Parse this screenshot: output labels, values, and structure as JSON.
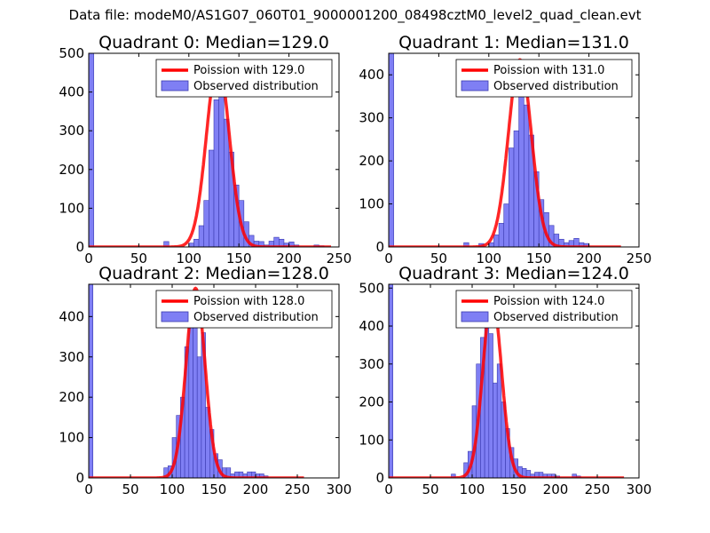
{
  "suptitle": "Data file: modeM0/AS1G07_060T01_9000001200_08498cztM0_level2_quad_clean.evt",
  "colors": {
    "hist_fill": "#7f7ff4",
    "hist_edge": "#3a3ab0",
    "fit_line": "#ff0000"
  },
  "chart_data": [
    {
      "type": "bar",
      "title": "Quadrant 0: Median=129.0",
      "xlim": [
        0,
        250
      ],
      "ylim": [
        0,
        500
      ],
      "xticks": [
        0,
        50,
        100,
        150,
        200,
        250
      ],
      "yticks": [
        0,
        100,
        200,
        300,
        400,
        500
      ],
      "bin_width": 5,
      "bins": [
        [
          0,
          500
        ],
        [
          75,
          14
        ],
        [
          100,
          10
        ],
        [
          105,
          20
        ],
        [
          110,
          55
        ],
        [
          115,
          120
        ],
        [
          120,
          250
        ],
        [
          125,
          380
        ],
        [
          130,
          430
        ],
        [
          135,
          330
        ],
        [
          140,
          245
        ],
        [
          145,
          160
        ],
        [
          150,
          120
        ],
        [
          155,
          65
        ],
        [
          160,
          30
        ],
        [
          165,
          15
        ],
        [
          170,
          14
        ],
        [
          175,
          5
        ],
        [
          180,
          15
        ],
        [
          185,
          25
        ],
        [
          190,
          20
        ],
        [
          195,
          10
        ],
        [
          200,
          13
        ],
        [
          205,
          5
        ],
        [
          225,
          5
        ],
        [
          230,
          3
        ]
      ],
      "fit": {
        "type": "poisson",
        "mean": 129.0,
        "peak": 480,
        "x_start": 0,
        "x_end": 242
      },
      "legend": {
        "line": "Poission with 129.0",
        "bar": "Observed distribution",
        "position": "upper-right"
      }
    },
    {
      "type": "bar",
      "title": "Quadrant 1: Median=131.0",
      "xlim": [
        0,
        250
      ],
      "ylim": [
        0,
        450
      ],
      "xticks": [
        0,
        50,
        100,
        150,
        200,
        250
      ],
      "yticks": [
        0,
        100,
        200,
        300,
        400
      ],
      "bin_width": 5,
      "bins": [
        [
          0,
          450
        ],
        [
          75,
          10
        ],
        [
          90,
          8
        ],
        [
          100,
          10
        ],
        [
          105,
          28
        ],
        [
          110,
          55
        ],
        [
          115,
          100
        ],
        [
          120,
          230
        ],
        [
          125,
          270
        ],
        [
          130,
          410
        ],
        [
          135,
          330
        ],
        [
          140,
          260
        ],
        [
          145,
          175
        ],
        [
          150,
          110
        ],
        [
          155,
          80
        ],
        [
          160,
          50
        ],
        [
          165,
          30
        ],
        [
          170,
          18
        ],
        [
          175,
          10
        ],
        [
          180,
          15
        ],
        [
          185,
          20
        ],
        [
          190,
          10
        ],
        [
          195,
          8
        ]
      ],
      "fit": {
        "type": "poisson",
        "mean": 131.0,
        "peak": 435,
        "x_start": 0,
        "x_end": 232
      },
      "legend": {
        "line": "Poission with 131.0",
        "bar": "Observed distribution",
        "position": "upper-right"
      }
    },
    {
      "type": "bar",
      "title": "Quadrant 2: Median=128.0",
      "xlim": [
        0,
        300
      ],
      "ylim": [
        0,
        480
      ],
      "xticks": [
        0,
        50,
        100,
        150,
        200,
        250,
        300
      ],
      "yticks": [
        0,
        100,
        200,
        300,
        400
      ],
      "bin_width": 5,
      "bins": [
        [
          0,
          480
        ],
        [
          90,
          25
        ],
        [
          95,
          30
        ],
        [
          100,
          100
        ],
        [
          105,
          155
        ],
        [
          110,
          200
        ],
        [
          115,
          325
        ],
        [
          120,
          440
        ],
        [
          125,
          400
        ],
        [
          130,
          300
        ],
        [
          135,
          360
        ],
        [
          140,
          175
        ],
        [
          145,
          120
        ],
        [
          150,
          60
        ],
        [
          155,
          45
        ],
        [
          160,
          25
        ],
        [
          165,
          25
        ],
        [
          170,
          10
        ],
        [
          175,
          15
        ],
        [
          180,
          15
        ],
        [
          185,
          10
        ],
        [
          190,
          15
        ],
        [
          195,
          15
        ],
        [
          200,
          10
        ],
        [
          205,
          10
        ],
        [
          210,
          5
        ]
      ],
      "fit": {
        "type": "poisson",
        "mean": 128.0,
        "peak": 470,
        "x_start": 0,
        "x_end": 258
      },
      "legend": {
        "line": "Poission with 128.0",
        "bar": "Observed distribution",
        "position": "upper-right"
      }
    },
    {
      "type": "bar",
      "title": "Quadrant 3: Median=124.0",
      "xlim": [
        0,
        300
      ],
      "ylim": [
        0,
        510
      ],
      "xticks": [
        0,
        50,
        100,
        150,
        200,
        250,
        300
      ],
      "yticks": [
        0,
        100,
        200,
        300,
        400,
        500
      ],
      "bin_width": 5,
      "bins": [
        [
          0,
          510
        ],
        [
          75,
          10
        ],
        [
          90,
          40
        ],
        [
          95,
          70
        ],
        [
          100,
          190
        ],
        [
          105,
          300
        ],
        [
          110,
          370
        ],
        [
          115,
          400
        ],
        [
          120,
          380
        ],
        [
          125,
          250
        ],
        [
          130,
          300
        ],
        [
          135,
          200
        ],
        [
          140,
          130
        ],
        [
          145,
          80
        ],
        [
          150,
          50
        ],
        [
          155,
          30
        ],
        [
          160,
          25
        ],
        [
          165,
          20
        ],
        [
          170,
          10
        ],
        [
          175,
          15
        ],
        [
          180,
          15
        ],
        [
          185,
          10
        ],
        [
          190,
          10
        ],
        [
          195,
          10
        ],
        [
          200,
          5
        ],
        [
          220,
          10
        ],
        [
          225,
          5
        ]
      ],
      "fit": {
        "type": "poisson",
        "mean": 124.0,
        "peak": 475,
        "x_start": 0,
        "x_end": 282
      },
      "legend": {
        "line": "Poission with 124.0",
        "bar": "Observed distribution",
        "position": "upper-right"
      }
    }
  ]
}
